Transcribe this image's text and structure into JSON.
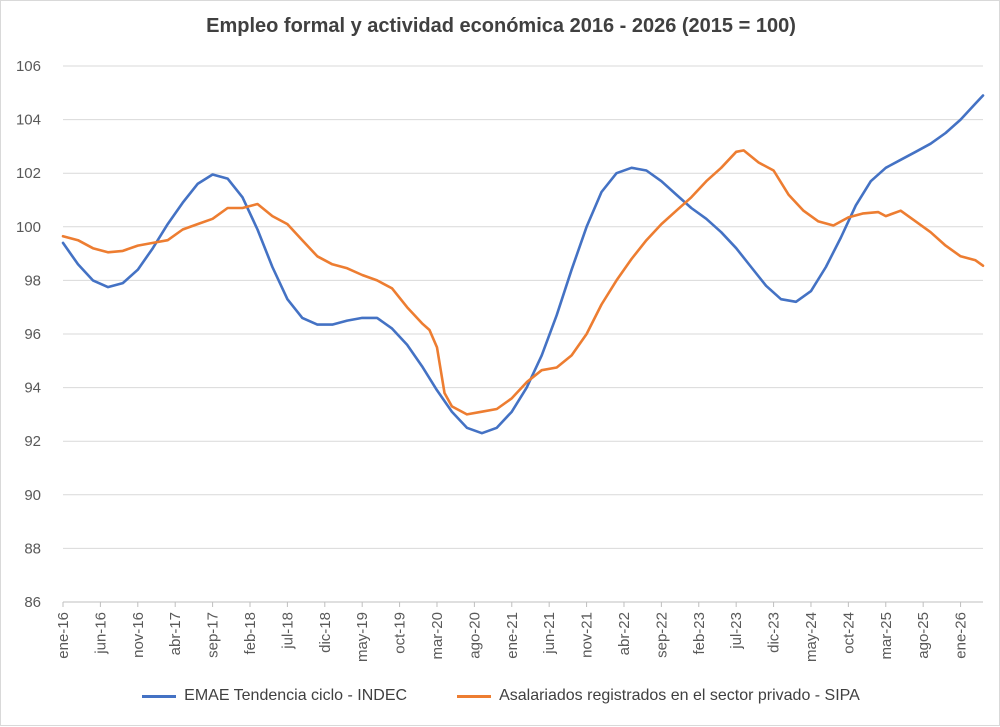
{
  "chart_data": {
    "type": "line",
    "title": "Empleo formal y actividad económica 2016 - 2026 (2015 = 100)",
    "xlabel": "",
    "ylabel": "",
    "ylim": [
      86,
      106
    ],
    "yticks": [
      "86",
      "88",
      "90",
      "92",
      "94",
      "96",
      "98",
      "100",
      "102",
      "104",
      "106"
    ],
    "x_start": "2016-01",
    "x_end": "2026-04",
    "xtick_labels": [
      "ene-16",
      "jun-16",
      "nov-16",
      "abr-17",
      "sep-17",
      "feb-18",
      "jul-18",
      "dic-18",
      "may-19",
      "oct-19",
      "mar-20",
      "ago-20",
      "ene-21",
      "jun-21",
      "nov-21",
      "abr-22",
      "sep-22",
      "feb-23",
      "jul-23",
      "dic-23",
      "may-24",
      "oct-24",
      "mar-25",
      "ago-25",
      "ene-26"
    ],
    "grid": true,
    "legend_position": "bottom",
    "series": [
      {
        "name": "EMAE Tendencia ciclo - INDEC",
        "color": "#4472C4",
        "points": [
          [
            "2016-01",
            99.4
          ],
          [
            "2016-03",
            98.6
          ],
          [
            "2016-05",
            98.0
          ],
          [
            "2016-07",
            97.75
          ],
          [
            "2016-09",
            97.9
          ],
          [
            "2016-11",
            98.4
          ],
          [
            "2017-01",
            99.2
          ],
          [
            "2017-03",
            100.1
          ],
          [
            "2017-05",
            100.9
          ],
          [
            "2017-07",
            101.6
          ],
          [
            "2017-09",
            101.95
          ],
          [
            "2017-11",
            101.8
          ],
          [
            "2018-01",
            101.1
          ],
          [
            "2018-03",
            99.9
          ],
          [
            "2018-05",
            98.5
          ],
          [
            "2018-07",
            97.3
          ],
          [
            "2018-09",
            96.6
          ],
          [
            "2018-11",
            96.35
          ],
          [
            "2019-01",
            96.35
          ],
          [
            "2019-03",
            96.5
          ],
          [
            "2019-05",
            96.6
          ],
          [
            "2019-07",
            96.6
          ],
          [
            "2019-09",
            96.2
          ],
          [
            "2019-11",
            95.6
          ],
          [
            "2020-01",
            94.8
          ],
          [
            "2020-03",
            93.9
          ],
          [
            "2020-05",
            93.1
          ],
          [
            "2020-07",
            92.5
          ],
          [
            "2020-09",
            92.3
          ],
          [
            "2020-11",
            92.5
          ],
          [
            "2021-01",
            93.1
          ],
          [
            "2021-03",
            94.0
          ],
          [
            "2021-05",
            95.2
          ],
          [
            "2021-07",
            96.7
          ],
          [
            "2021-09",
            98.4
          ],
          [
            "2021-11",
            100.0
          ],
          [
            "2022-01",
            101.3
          ],
          [
            "2022-03",
            102.0
          ],
          [
            "2022-05",
            102.2
          ],
          [
            "2022-07",
            102.1
          ],
          [
            "2022-09",
            101.7
          ],
          [
            "2022-11",
            101.2
          ],
          [
            "2023-01",
            100.7
          ],
          [
            "2023-03",
            100.3
          ],
          [
            "2023-05",
            99.8
          ],
          [
            "2023-07",
            99.2
          ],
          [
            "2023-09",
            98.5
          ],
          [
            "2023-11",
            97.8
          ],
          [
            "2024-01",
            97.3
          ],
          [
            "2024-03",
            97.2
          ],
          [
            "2024-05",
            97.6
          ],
          [
            "2024-07",
            98.5
          ],
          [
            "2024-09",
            99.6
          ],
          [
            "2024-11",
            100.8
          ],
          [
            "2025-01",
            101.7
          ],
          [
            "2025-03",
            102.2
          ],
          [
            "2025-05",
            102.5
          ],
          [
            "2025-07",
            102.8
          ],
          [
            "2025-09",
            103.1
          ],
          [
            "2025-11",
            103.5
          ],
          [
            "2026-01",
            104.0
          ],
          [
            "2026-03",
            104.6
          ],
          [
            "2026-04",
            104.9
          ]
        ]
      },
      {
        "name": "Asalariados registrados en el sector privado - SIPA",
        "color": "#ED7D31",
        "points": [
          [
            "2016-01",
            99.65
          ],
          [
            "2016-03",
            99.5
          ],
          [
            "2016-05",
            99.2
          ],
          [
            "2016-07",
            99.05
          ],
          [
            "2016-09",
            99.1
          ],
          [
            "2016-11",
            99.3
          ],
          [
            "2017-01",
            99.4
          ],
          [
            "2017-03",
            99.5
          ],
          [
            "2017-05",
            99.9
          ],
          [
            "2017-07",
            100.1
          ],
          [
            "2017-09",
            100.3
          ],
          [
            "2017-11",
            100.7
          ],
          [
            "2018-01",
            100.7
          ],
          [
            "2018-03",
            100.85
          ],
          [
            "2018-05",
            100.4
          ],
          [
            "2018-07",
            100.1
          ],
          [
            "2018-09",
            99.5
          ],
          [
            "2018-11",
            98.9
          ],
          [
            "2019-01",
            98.6
          ],
          [
            "2019-03",
            98.45
          ],
          [
            "2019-05",
            98.2
          ],
          [
            "2019-07",
            98.0
          ],
          [
            "2019-09",
            97.7
          ],
          [
            "2019-11",
            97.0
          ],
          [
            "2020-01",
            96.4
          ],
          [
            "2020-02",
            96.15
          ],
          [
            "2020-03",
            95.5
          ],
          [
            "2020-04",
            93.8
          ],
          [
            "2020-05",
            93.3
          ],
          [
            "2020-07",
            93.0
          ],
          [
            "2020-09",
            93.1
          ],
          [
            "2020-11",
            93.2
          ],
          [
            "2021-01",
            93.6
          ],
          [
            "2021-03",
            94.2
          ],
          [
            "2021-05",
            94.65
          ],
          [
            "2021-07",
            94.75
          ],
          [
            "2021-09",
            95.2
          ],
          [
            "2021-11",
            96.0
          ],
          [
            "2022-01",
            97.1
          ],
          [
            "2022-03",
            98.0
          ],
          [
            "2022-05",
            98.8
          ],
          [
            "2022-07",
            99.5
          ],
          [
            "2022-09",
            100.1
          ],
          [
            "2022-11",
            100.6
          ],
          [
            "2023-01",
            101.1
          ],
          [
            "2023-03",
            101.7
          ],
          [
            "2023-05",
            102.2
          ],
          [
            "2023-07",
            102.8
          ],
          [
            "2023-08",
            102.85
          ],
          [
            "2023-10",
            102.4
          ],
          [
            "2023-12",
            102.1
          ],
          [
            "2024-02",
            101.2
          ],
          [
            "2024-04",
            100.6
          ],
          [
            "2024-06",
            100.2
          ],
          [
            "2024-08",
            100.05
          ],
          [
            "2024-10",
            100.35
          ],
          [
            "2024-12",
            100.5
          ],
          [
            "2025-02",
            100.55
          ],
          [
            "2025-03",
            100.4
          ],
          [
            "2025-05",
            100.6
          ],
          [
            "2025-07",
            100.2
          ],
          [
            "2025-09",
            99.8
          ],
          [
            "2025-11",
            99.3
          ],
          [
            "2026-01",
            98.9
          ],
          [
            "2026-03",
            98.75
          ],
          [
            "2026-04",
            98.55
          ]
        ]
      }
    ]
  }
}
